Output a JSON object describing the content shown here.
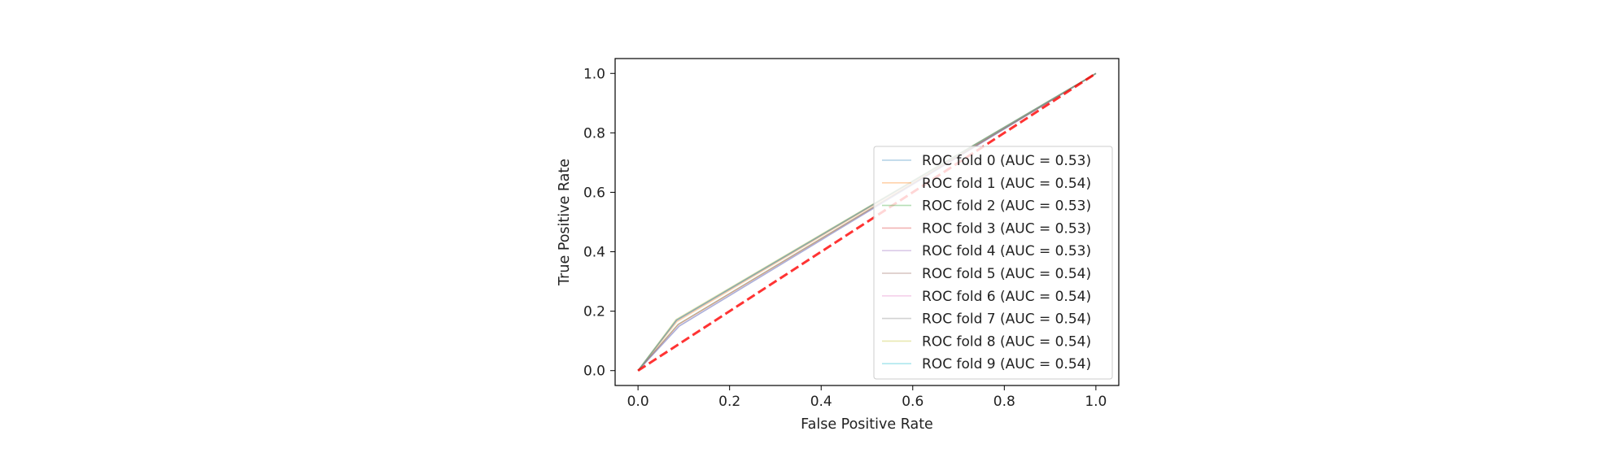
{
  "chart_data": {
    "type": "line",
    "title": "",
    "xlabel": "False Positive Rate",
    "ylabel": "True Positive Rate",
    "xlim": [
      -0.05,
      1.05
    ],
    "ylim": [
      -0.05,
      1.05
    ],
    "xticks": [
      0.0,
      0.2,
      0.4,
      0.6,
      0.8,
      1.0
    ],
    "yticks": [
      0.0,
      0.2,
      0.4,
      0.6,
      0.8,
      1.0
    ],
    "xtick_labels": [
      "0.0",
      "0.2",
      "0.4",
      "0.6",
      "0.8",
      "1.0"
    ],
    "ytick_labels": [
      "0.0",
      "0.2",
      "0.4",
      "0.6",
      "0.8",
      "1.0"
    ],
    "grid": false,
    "legend_position": "lower right",
    "series": [
      {
        "name": "ROC fold 0 (AUC = 0.53)",
        "color": "#1f77b4",
        "x": [
          0.0,
          0.09,
          1.0
        ],
        "y": [
          0.0,
          0.15,
          1.0
        ]
      },
      {
        "name": "ROC fold 1 (AUC = 0.54)",
        "color": "#ff7f0e",
        "x": [
          0.0,
          0.085,
          1.0
        ],
        "y": [
          0.0,
          0.165,
          1.0
        ]
      },
      {
        "name": "ROC fold 2 (AUC = 0.53)",
        "color": "#2ca02c",
        "x": [
          0.0,
          0.087,
          1.0
        ],
        "y": [
          0.0,
          0.155,
          1.0
        ]
      },
      {
        "name": "ROC fold 3 (AUC = 0.53)",
        "color": "#d62728",
        "x": [
          0.0,
          0.088,
          1.0
        ],
        "y": [
          0.0,
          0.155,
          1.0
        ]
      },
      {
        "name": "ROC fold 4 (AUC = 0.53)",
        "color": "#9467bd",
        "x": [
          0.0,
          0.09,
          1.0
        ],
        "y": [
          0.0,
          0.15,
          1.0
        ]
      },
      {
        "name": "ROC fold 5 (AUC = 0.54)",
        "color": "#8c564b",
        "x": [
          0.0,
          0.084,
          1.0
        ],
        "y": [
          0.0,
          0.17,
          1.0
        ]
      },
      {
        "name": "ROC fold 6 (AUC = 0.54)",
        "color": "#e377c2",
        "x": [
          0.0,
          0.084,
          1.0
        ],
        "y": [
          0.0,
          0.17,
          1.0
        ]
      },
      {
        "name": "ROC fold 7 (AUC = 0.54)",
        "color": "#7f7f7f",
        "x": [
          0.0,
          0.084,
          1.0
        ],
        "y": [
          0.0,
          0.168,
          1.0
        ]
      },
      {
        "name": "ROC fold 8 (AUC = 0.54)",
        "color": "#bcbd22",
        "x": [
          0.0,
          0.083,
          1.0
        ],
        "y": [
          0.0,
          0.172,
          1.0
        ]
      },
      {
        "name": "ROC fold 9 (AUC = 0.54)",
        "color": "#17becf",
        "x": [
          0.0,
          0.084,
          1.0
        ],
        "y": [
          0.0,
          0.17,
          1.0
        ]
      }
    ],
    "reference_line": {
      "x": [
        0.0,
        1.0
      ],
      "y": [
        0.0,
        1.0
      ],
      "color": "#ff0000",
      "style": "dashed"
    }
  }
}
